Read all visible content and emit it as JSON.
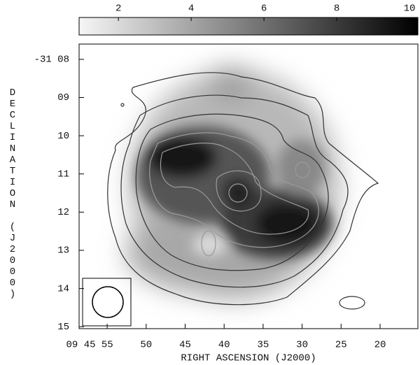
{
  "chart_data": {
    "type": "image",
    "xlabel": "RIGHT ASCENSION (J2000)",
    "ylabel": "DECLINATION (J2000)",
    "xlim": [
      58.6,
      15.15
    ],
    "xticks": [
      {
        "value": 55,
        "label": "09 45 55"
      },
      50,
      45,
      40,
      35,
      30,
      25,
      20
    ],
    "ylim": [
      7.6,
      15.05
    ],
    "yticks": [
      {
        "value": 8,
        "label": "-31 08"
      },
      {
        "value": 9,
        "label": "09"
      },
      10,
      11,
      12,
      13,
      14,
      15
    ],
    "colorbar": {
      "lim": [
        0.92,
        10.23
      ],
      "ticks": [
        2,
        4,
        6,
        8,
        10
      ],
      "colors": [
        "#f6f6f6",
        "#000000"
      ]
    }
  }
}
